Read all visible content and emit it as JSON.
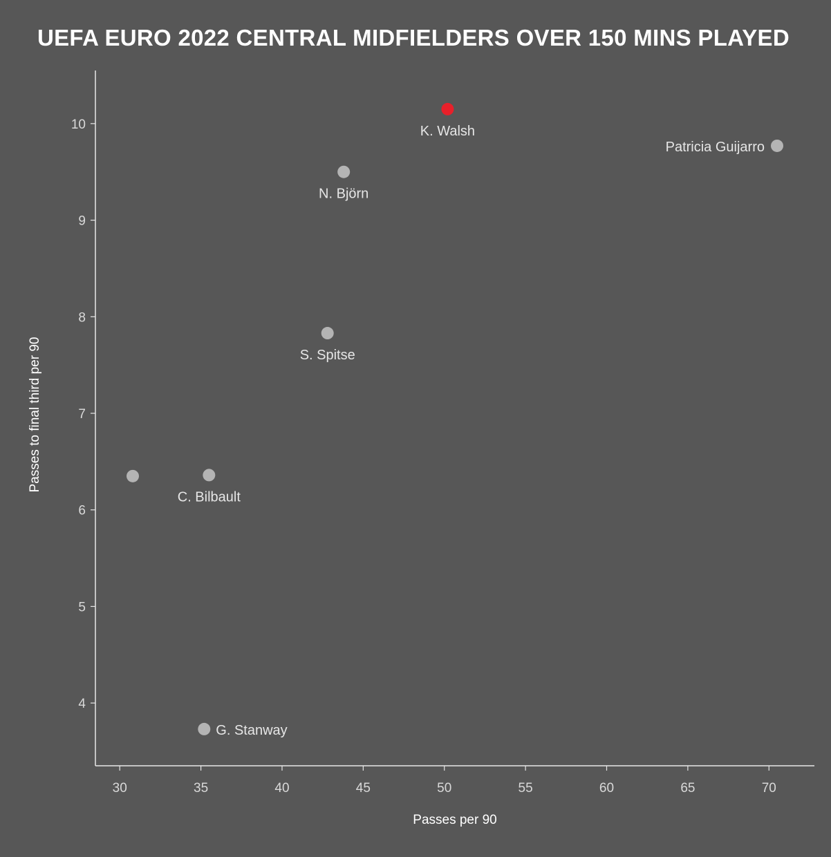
{
  "chart_data": {
    "type": "scatter",
    "title": "UEFA EURO 2022 CENTRAL MIDFIELDERS OVER 150 MINS PLAYED",
    "xlabel": "Passes per 90",
    "ylabel": "Passes to final third per 90",
    "xlim": [
      28.5,
      72.8
    ],
    "ylim": [
      3.35,
      10.55
    ],
    "xticks": [
      30,
      35,
      40,
      45,
      50,
      55,
      60,
      65,
      70
    ],
    "yticks": [
      4,
      5,
      6,
      7,
      8,
      9,
      10
    ],
    "grid": false,
    "points": [
      {
        "label": "K. Walsh",
        "x": 50.2,
        "y": 10.15,
        "color": "#e8202a",
        "label_pos": "below"
      },
      {
        "label": "Patricia Guijarro",
        "x": 70.5,
        "y": 9.77,
        "color": "#b4b4b4",
        "label_pos": "left"
      },
      {
        "label": "N. Björn",
        "x": 43.8,
        "y": 9.5,
        "color": "#b4b4b4",
        "label_pos": "below"
      },
      {
        "label": "S. Spitse",
        "x": 42.8,
        "y": 7.83,
        "color": "#b4b4b4",
        "label_pos": "below"
      },
      {
        "label": "C. Bilbault",
        "x": 35.5,
        "y": 6.36,
        "color": "#b4b4b4",
        "label_pos": "below"
      },
      {
        "label": "",
        "x": 30.8,
        "y": 6.35,
        "color": "#b4b4b4",
        "label_pos": "none"
      },
      {
        "label": "G. Stanway",
        "x": 35.2,
        "y": 3.73,
        "color": "#b4b4b4",
        "label_pos": "right"
      }
    ]
  }
}
